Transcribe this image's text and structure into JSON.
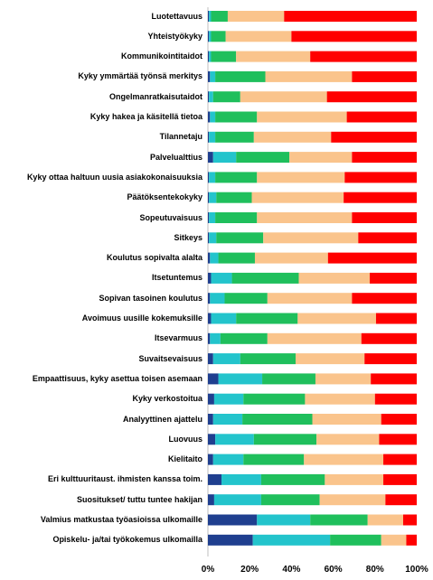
{
  "chart_data": {
    "type": "bar",
    "orientation": "horizontal",
    "stacked": true,
    "percent": true,
    "title": "",
    "xlabel": "",
    "ylabel": "",
    "xlim": [
      0,
      100
    ],
    "x_ticks": [
      "0%",
      "20%",
      "40%",
      "60%",
      "80%",
      "100%"
    ],
    "grid": false,
    "legend": "none",
    "colors": [
      "#1f3f8f",
      "#23c4cc",
      "#1fbf5c",
      "#fac48c",
      "#ff0000"
    ],
    "categories": [
      "Luotettavuus",
      "Yhteistyökyky",
      "Kommunikointitaidot",
      "Kyky ymmärtää työnsä merkitys",
      "Ongelmanratkaisutaidot",
      "Kyky hakea ja käsitellä tietoa",
      "Tilannetaju",
      "Palvelualttius",
      "Kyky ottaa haltuun uusia asiakokonaisuuksia",
      "Päätöksentekokyky",
      "Sopeutuvaisuus",
      "Sitkeys",
      "Koulutus sopivalta alalta",
      "Itsetuntemus",
      "Sopivan tasoinen koulutus",
      "Avoimuus uusille kokemuksille",
      "Itsevarmuus",
      "Suvaitsevaisuus",
      "Empaattisuus, kyky asettua toisen asemaan",
      "Kyky verkostoitua",
      "Analyyttinen ajattelu",
      "Luovuus",
      "Kielitaito",
      "Eri kulttuuritaust. ihmisten kanssa toim.",
      "Suositukset/ tuttu tuntee hakijan",
      "Valmius matkustaa työasioissa ulkomaille",
      "Opiskelu- ja/tai työkokemus ulkomailla"
    ],
    "series": [
      {
        "values": [
          0.5,
          0.5,
          0.5,
          1,
          0.5,
          1,
          0.5,
          2.5,
          0.5,
          0.5,
          0.5,
          0.5,
          1,
          1.5,
          1,
          1.5,
          1,
          2.5,
          5,
          3,
          2.5,
          3.5,
          2.5,
          6.5,
          3,
          23.5,
          21.5
        ]
      },
      {
        "values": [
          1,
          1,
          1,
          2.5,
          2,
          2.5,
          3,
          11,
          3,
          3.5,
          3,
          3.5,
          4,
          10,
          7,
          12,
          5,
          13,
          21,
          14,
          14,
          18.5,
          14.5,
          19,
          22.5,
          25.5,
          37
        ]
      },
      {
        "values": [
          8,
          7,
          12,
          24,
          13,
          20,
          18.5,
          25.5,
          20,
          17,
          20,
          22.5,
          17.5,
          32,
          20.5,
          29.5,
          22.5,
          26.5,
          25.5,
          29.5,
          33.5,
          30,
          29,
          30.5,
          28,
          27.5,
          24.5
        ]
      },
      {
        "values": [
          27,
          31.5,
          35.5,
          41.5,
          41.5,
          43,
          37,
          30,
          42,
          44,
          45.5,
          45.5,
          35,
          34,
          40.5,
          37.5,
          45,
          33,
          26.5,
          33.5,
          33,
          30,
          38,
          28,
          31.5,
          17,
          12
        ]
      },
      {
        "values": [
          63.5,
          60,
          51,
          31,
          43,
          33.5,
          41,
          31,
          34.5,
          35,
          31,
          28,
          42.5,
          22.5,
          31,
          19.5,
          26.5,
          25,
          22,
          20,
          17,
          18,
          16,
          16,
          15,
          6.5,
          5
        ]
      }
    ]
  }
}
